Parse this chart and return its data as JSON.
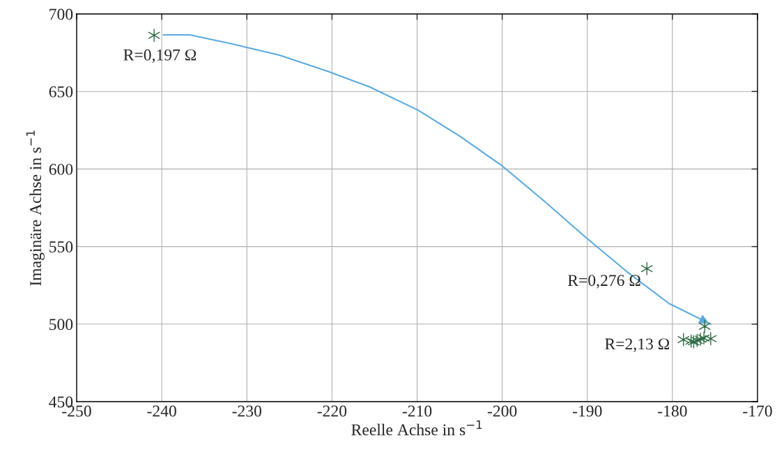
{
  "chart_data": {
    "type": "line",
    "xlabel": "Reelle Achse in s$^{−1}$",
    "ylabel": "Imaginäre Achse in s$^{−1}$",
    "xlim": [
      -250,
      -170
    ],
    "xticks": [
      -250,
      -240,
      -230,
      -220,
      -210,
      -200,
      -190,
      -180,
      -170
    ],
    "ylim": [
      450,
      700
    ],
    "yticks": [
      450,
      500,
      550,
      600,
      650,
      700
    ],
    "grid": true,
    "series": [
      {
        "color": "#5aaae0",
        "x": [
          -239.8,
          -236.7,
          -232,
          -226.2,
          -220.5,
          -215.6,
          -209.9,
          -205,
          -200,
          -195.1,
          -190.2,
          -185.3,
          -180.4,
          -175.5
        ],
        "values": [
          686.5,
          686.5,
          681,
          673.5,
          663,
          653,
          638,
          621.3,
          602,
          579.5,
          556,
          533.6,
          513.3,
          500
        ]
      },
      {
        "type": "scatter",
        "color": "#2e6b45",
        "marker": "cross",
        "x": [
          -240.9,
          -183,
          -176.2,
          -178.7,
          -177.8,
          -177.1,
          -176.7,
          -176.3,
          -175.5,
          -177.5
        ],
        "values": [
          686.2,
          535.8,
          498.6,
          490,
          489,
          489.5,
          490.3,
          491,
          490.6,
          488.6
        ]
      }
    ],
    "annotations": [
      {
        "text": "R=0,197 Ω",
        "x": -240.9,
        "y": 686.2
      },
      {
        "text": "R=0,276 Ω",
        "x": -183,
        "y": 535.8
      },
      {
        "text": "R=2,13 Ω",
        "x": -178.7,
        "y": 490
      }
    ]
  }
}
